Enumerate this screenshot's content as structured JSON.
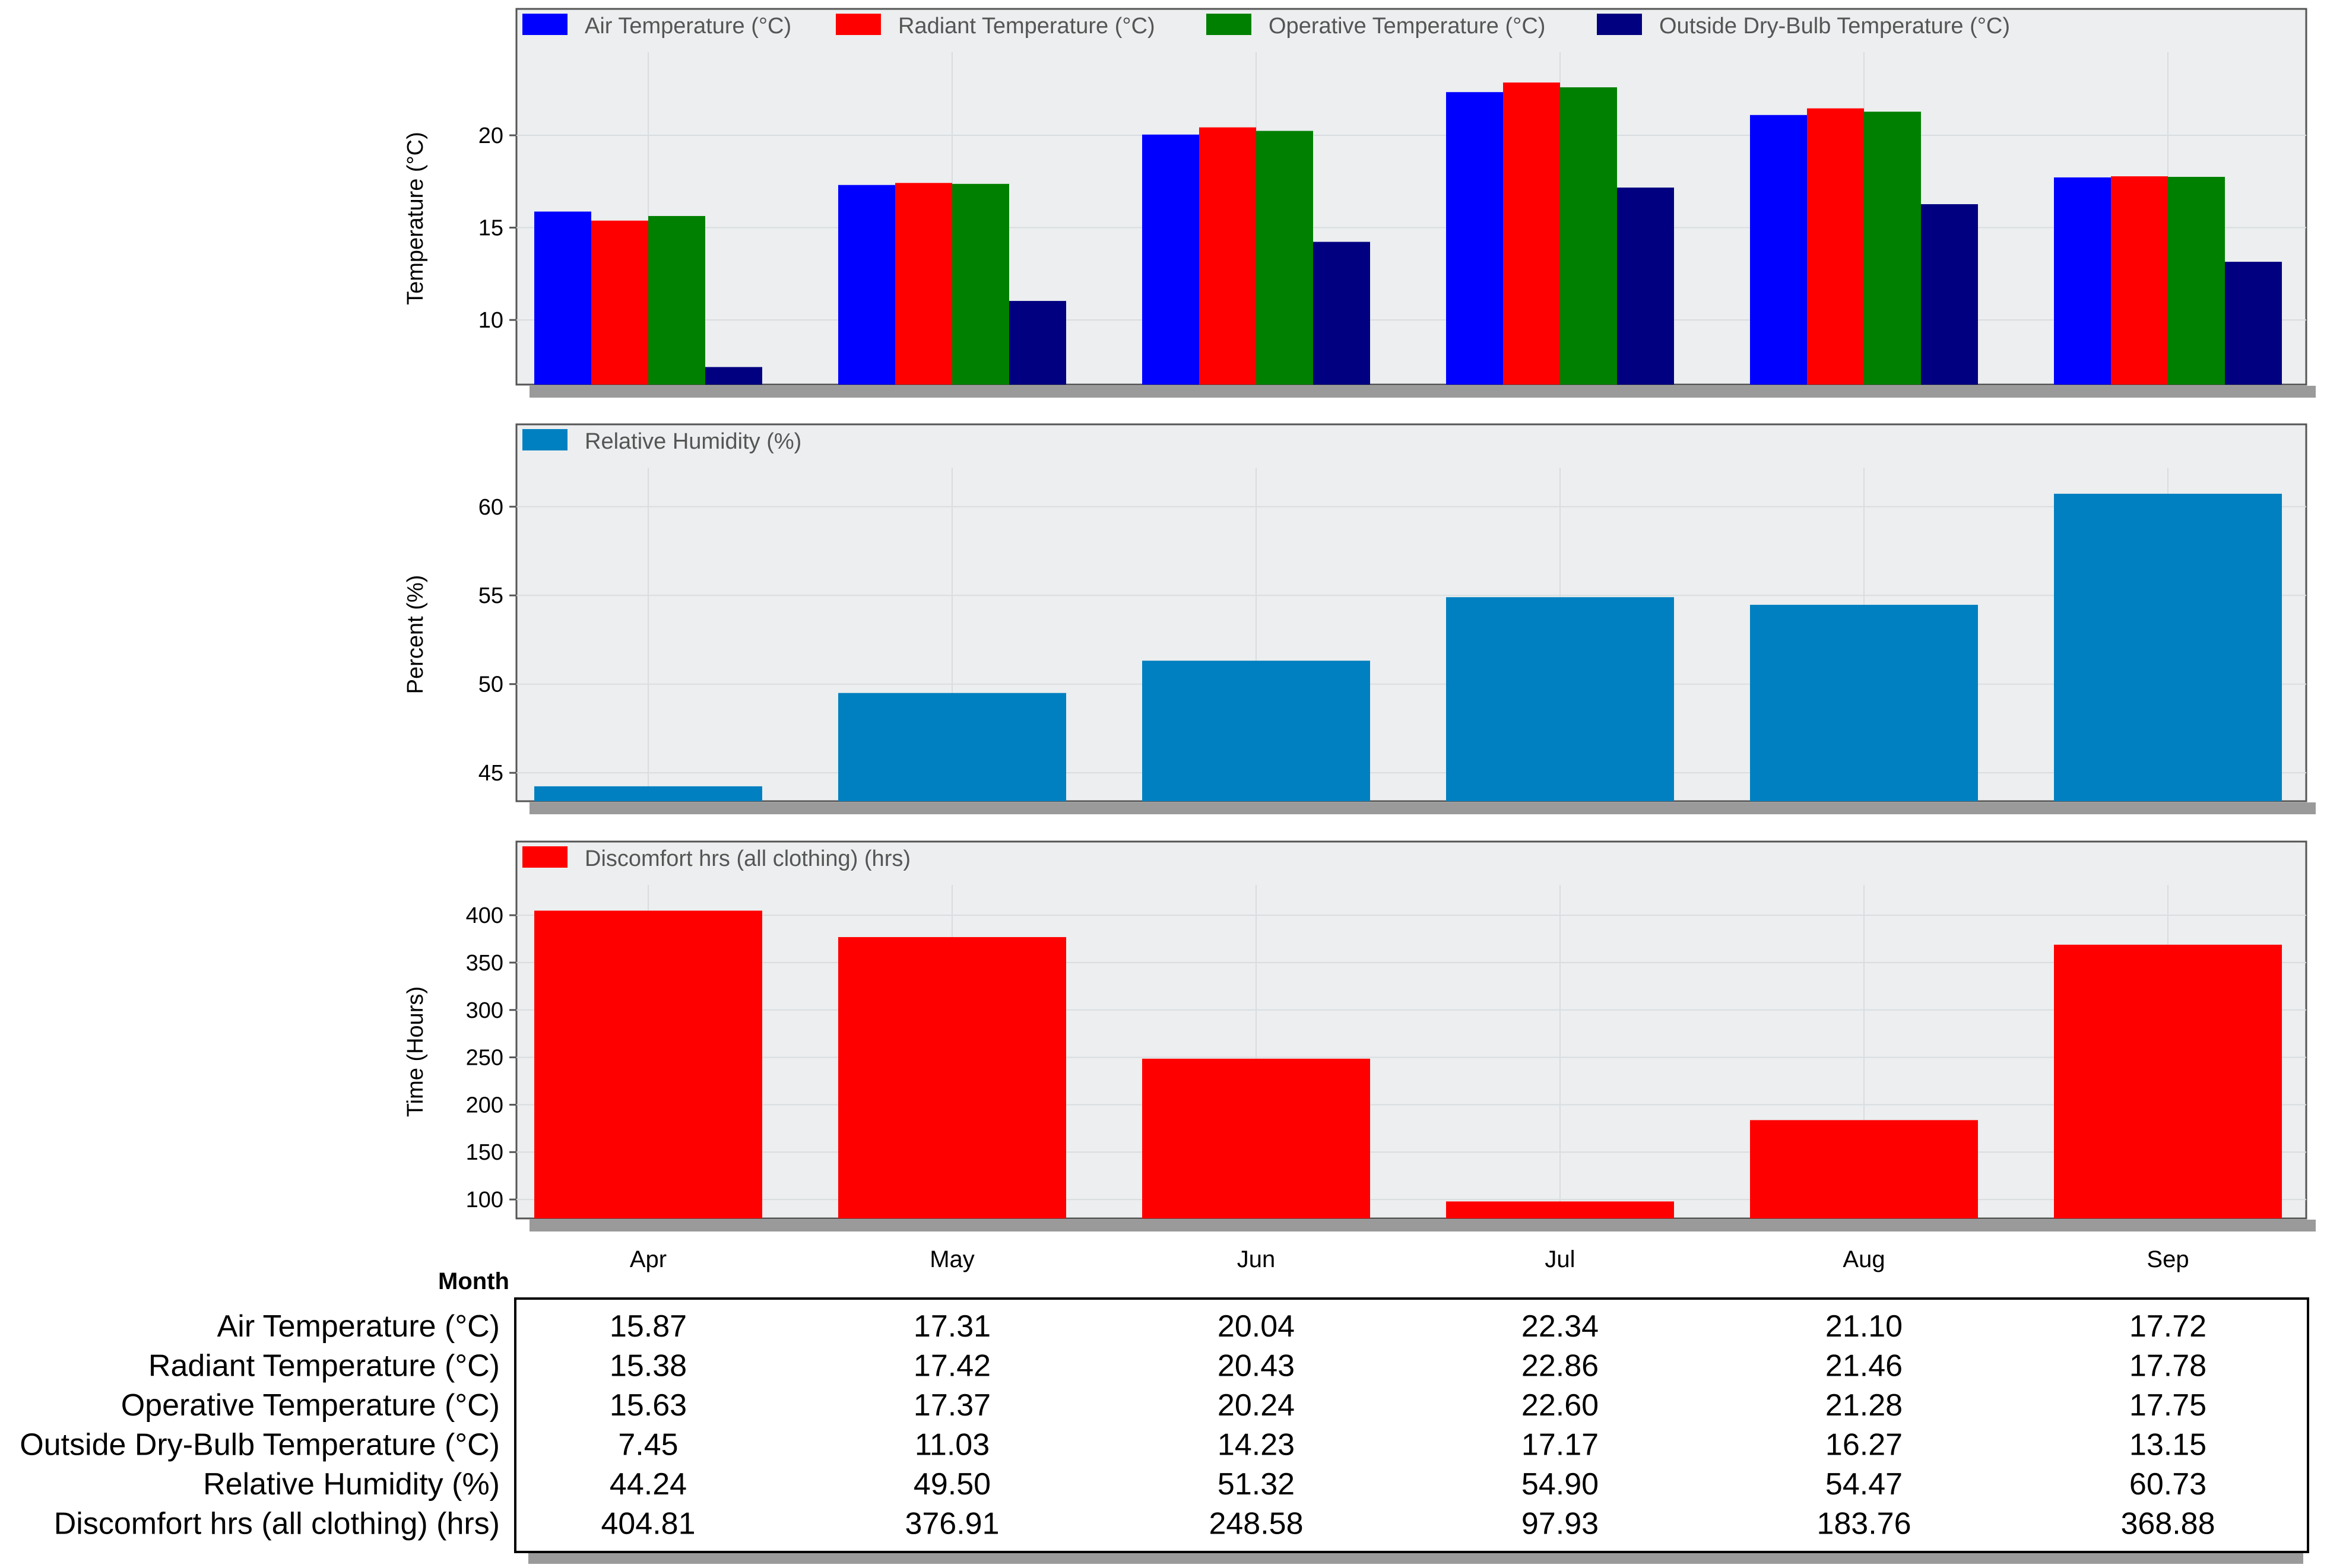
{
  "colors": {
    "air": "#0000FF",
    "radiant": "#FF0000",
    "operative": "#008000",
    "outside": "#000080",
    "humidity": "#0080C0",
    "discomfort": "#FF0000",
    "plot_bg": "#ECEEEF",
    "grid": "#D9DDE0",
    "shadow": "#9A9A9A"
  },
  "x_axis_label": "Month",
  "chart_data": [
    {
      "type": "bar",
      "ylabel": "Temperature (°C)",
      "ylim": [
        6.5,
        24.5
      ],
      "yticks": [
        10,
        15,
        20
      ],
      "categories": [
        "Apr",
        "May",
        "Jun",
        "Jul",
        "Aug",
        "Sep"
      ],
      "series": [
        {
          "name": "Air Temperature (°C)",
          "color_key": "air",
          "values": [
            15.87,
            17.31,
            20.04,
            22.34,
            21.1,
            17.72
          ]
        },
        {
          "name": "Radiant Temperature (°C)",
          "color_key": "radiant",
          "values": [
            15.38,
            17.42,
            20.43,
            22.86,
            21.46,
            17.78
          ]
        },
        {
          "name": "Operative Temperature (°C)",
          "color_key": "operative",
          "values": [
            15.63,
            17.37,
            20.24,
            22.6,
            21.28,
            17.75
          ]
        },
        {
          "name": "Outside Dry-Bulb Temperature (°C)",
          "color_key": "outside",
          "values": [
            7.45,
            11.03,
            14.23,
            17.17,
            16.27,
            13.15
          ]
        }
      ]
    },
    {
      "type": "bar",
      "ylabel": "Percent (%)",
      "ylim": [
        43.4,
        62.2
      ],
      "yticks": [
        45,
        50,
        55,
        60
      ],
      "categories": [
        "Apr",
        "May",
        "Jun",
        "Jul",
        "Aug",
        "Sep"
      ],
      "series": [
        {
          "name": "Relative Humidity (%)",
          "color_key": "humidity",
          "values": [
            44.24,
            49.5,
            51.32,
            54.9,
            54.47,
            60.73
          ]
        }
      ]
    },
    {
      "type": "bar",
      "ylabel": "Time (Hours)",
      "ylim": [
        80,
        432
      ],
      "yticks": [
        100,
        150,
        200,
        250,
        300,
        350,
        400
      ],
      "categories": [
        "Apr",
        "May",
        "Jun",
        "Jul",
        "Aug",
        "Sep"
      ],
      "series": [
        {
          "name": "Discomfort hrs (all clothing) (hrs)",
          "color_key": "discomfort",
          "values": [
            404.81,
            376.91,
            248.58,
            97.93,
            183.76,
            368.88
          ]
        }
      ]
    }
  ],
  "table": {
    "rows": [
      {
        "label": "Air Temperature (°C)",
        "values": [
          "15.87",
          "17.31",
          "20.04",
          "22.34",
          "21.10",
          "17.72"
        ]
      },
      {
        "label": "Radiant Temperature (°C)",
        "values": [
          "15.38",
          "17.42",
          "20.43",
          "22.86",
          "21.46",
          "17.78"
        ]
      },
      {
        "label": "Operative Temperature (°C)",
        "values": [
          "15.63",
          "17.37",
          "20.24",
          "22.60",
          "21.28",
          "17.75"
        ]
      },
      {
        "label": "Outside Dry-Bulb Temperature (°C)",
        "values": [
          "7.45",
          "11.03",
          "14.23",
          "17.17",
          "16.27",
          "13.15"
        ]
      },
      {
        "label": "Relative Humidity (%)",
        "values": [
          "44.24",
          "49.50",
          "51.32",
          "54.90",
          "54.47",
          "60.73"
        ]
      },
      {
        "label": "Discomfort hrs (all clothing) (hrs)",
        "values": [
          "404.81",
          "376.91",
          "248.58",
          "97.93",
          "183.76",
          "368.88"
        ]
      }
    ]
  }
}
